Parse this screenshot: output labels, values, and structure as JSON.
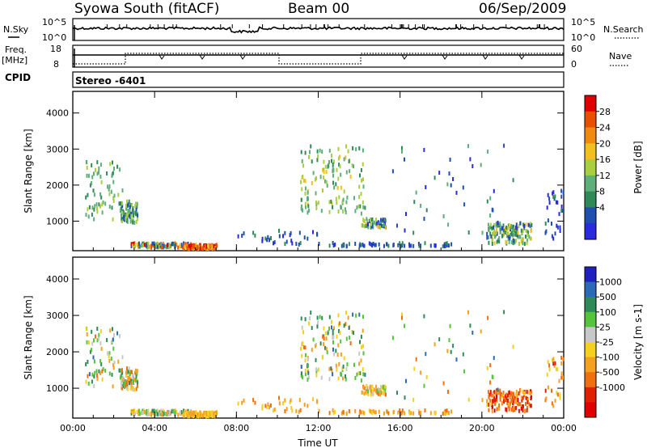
{
  "header": {
    "station": "Syowa South (fitACF)",
    "beam": "Beam 00",
    "date": "06/Sep/2009"
  },
  "top_panels": {
    "nsky_label": "N.Sky",
    "nsky_ticks": [
      "10^5",
      "10^0"
    ],
    "nsearch_label": "N.Search",
    "freq_label_1": "Freq.",
    "freq_label_2": "[MHz]",
    "freq_ticks": [
      "18",
      "8"
    ],
    "nave_ticks": [
      "60",
      "0"
    ],
    "nave_label": "Nave",
    "cpid_label": "CPID",
    "cpid_value": "Stereo -6401"
  },
  "colors": {
    "power_scale": [
      "#2a2adf",
      "#1f4fb0",
      "#2e8b57",
      "#5faf7a",
      "#a9cf3f",
      "#f0c020",
      "#f08a10",
      "#e85000",
      "#e00000"
    ],
    "velocity_scale": [
      "#2020c0",
      "#2a6ab8",
      "#2e8b57",
      "#54c43a",
      "#c8c8c8",
      "#f5d020",
      "#f5a020",
      "#f07010",
      "#e02000",
      "#e00000"
    ]
  },
  "chart_data": [
    {
      "type": "heatmap",
      "title": "",
      "xlabel": "",
      "ylabel": "Slant Range [km]",
      "x_ticks": [
        "00:00",
        "04:00",
        "08:00",
        "12:00",
        "16:00",
        "20:00",
        "00:00"
      ],
      "y_ticks": [
        "1000",
        "2000",
        "3000",
        "4000"
      ],
      "xlim": [
        0,
        24
      ],
      "ylim": [
        180,
        4600
      ],
      "colorbar_label": "Power [dB]",
      "colorbar_ticks": [
        "4",
        "8",
        "12",
        "16",
        "20",
        "24",
        "28"
      ],
      "clusters": [
        {
          "t": 2.7,
          "r": 1300,
          "dt": 0.9,
          "dr": 600,
          "n": 80,
          "lvl": [
            1,
            4
          ]
        },
        {
          "t": 1.5,
          "r": 1900,
          "dt": 1.8,
          "dr": 1600,
          "n": 70,
          "lvl": [
            2,
            4
          ]
        },
        {
          "t": 4.3,
          "r": 380,
          "dt": 3.0,
          "dr": 120,
          "n": 120,
          "lvl": [
            0,
            8
          ]
        },
        {
          "t": 6.2,
          "r": 340,
          "dt": 1.6,
          "dr": 120,
          "n": 110,
          "lvl": [
            5,
            8
          ]
        },
        {
          "t": 10.0,
          "r": 600,
          "dt": 4.0,
          "dr": 400,
          "n": 35,
          "lvl": [
            0,
            2
          ]
        },
        {
          "t": 12.7,
          "r": 2200,
          "dt": 3.2,
          "dr": 1900,
          "n": 140,
          "lvl": [
            2,
            5
          ]
        },
        {
          "t": 14.7,
          "r": 1000,
          "dt": 1.2,
          "dr": 250,
          "n": 60,
          "lvl": [
            0,
            5
          ]
        },
        {
          "t": 15.5,
          "r": 400,
          "dt": 6.0,
          "dr": 100,
          "n": 60,
          "lvl": [
            0,
            2
          ]
        },
        {
          "t": 21.3,
          "r": 700,
          "dt": 2.2,
          "dr": 600,
          "n": 150,
          "lvl": [
            0,
            5
          ]
        },
        {
          "t": 18.5,
          "r": 1900,
          "dt": 6.0,
          "dr": 2500,
          "n": 45,
          "lvl": [
            0,
            3
          ]
        },
        {
          "t": 23.5,
          "r": 1200,
          "dt": 0.9,
          "dr": 1500,
          "n": 30,
          "lvl": [
            0,
            2
          ]
        }
      ]
    },
    {
      "type": "heatmap",
      "title": "",
      "xlabel": "Time UT",
      "ylabel": "Slant Range [km]",
      "x_ticks": [
        "00:00",
        "04:00",
        "08:00",
        "12:00",
        "16:00",
        "20:00",
        "00:00"
      ],
      "y_ticks": [
        "1000",
        "2000",
        "3000",
        "4000"
      ],
      "xlim": [
        0,
        24
      ],
      "ylim": [
        180,
        4600
      ],
      "colorbar_label": "Velocity [m s-1]",
      "colorbar_ticks": [
        "1000",
        "500",
        "100",
        "25",
        "-25",
        "-100",
        "-500",
        "-1000"
      ],
      "clusters": [
        {
          "t": 2.7,
          "r": 1300,
          "dt": 0.9,
          "dr": 600,
          "n": 80,
          "lvl": [
            2,
            7
          ]
        },
        {
          "t": 1.5,
          "r": 1900,
          "dt": 1.8,
          "dr": 1600,
          "n": 70,
          "lvl": [
            1,
            7
          ]
        },
        {
          "t": 4.3,
          "r": 380,
          "dt": 3.0,
          "dr": 120,
          "n": 120,
          "lvl": [
            2,
            6
          ]
        },
        {
          "t": 6.2,
          "r": 340,
          "dt": 1.6,
          "dr": 120,
          "n": 110,
          "lvl": [
            5,
            6
          ]
        },
        {
          "t": 10.0,
          "r": 600,
          "dt": 4.0,
          "dr": 400,
          "n": 35,
          "lvl": [
            5,
            7
          ]
        },
        {
          "t": 12.7,
          "r": 2200,
          "dt": 3.2,
          "dr": 1900,
          "n": 140,
          "lvl": [
            1,
            7
          ]
        },
        {
          "t": 14.7,
          "r": 1000,
          "dt": 1.2,
          "dr": 250,
          "n": 60,
          "lvl": [
            3,
            7
          ]
        },
        {
          "t": 15.5,
          "r": 400,
          "dt": 6.0,
          "dr": 100,
          "n": 60,
          "lvl": [
            5,
            7
          ]
        },
        {
          "t": 21.3,
          "r": 700,
          "dt": 2.2,
          "dr": 600,
          "n": 150,
          "lvl": [
            5,
            9
          ]
        },
        {
          "t": 18.5,
          "r": 1900,
          "dt": 6.0,
          "dr": 2500,
          "n": 45,
          "lvl": [
            1,
            7
          ]
        },
        {
          "t": 23.5,
          "r": 1200,
          "dt": 0.9,
          "dr": 1500,
          "n": 30,
          "lvl": [
            5,
            8
          ]
        }
      ]
    }
  ]
}
